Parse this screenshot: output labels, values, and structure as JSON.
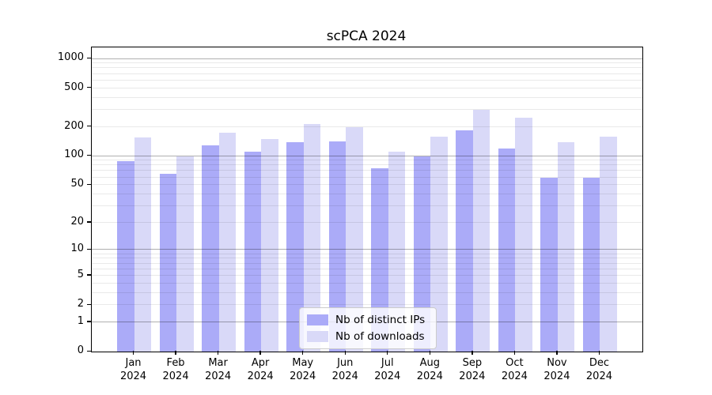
{
  "title": "scPCA 2024",
  "legend": {
    "items": [
      {
        "label": "Nb of distinct IPs",
        "color": "#ababf8"
      },
      {
        "label": "Nb of downloads",
        "color": "#d9d9f8"
      }
    ]
  },
  "chart_data": {
    "type": "bar",
    "title": "scPCA 2024",
    "categories": [
      "Jan 2024",
      "Feb 2024",
      "Mar 2024",
      "Apr 2024",
      "May 2024",
      "Jun 2024",
      "Jul 2024",
      "Aug 2024",
      "Sep 2024",
      "Oct 2024",
      "Nov 2024",
      "Dec 2024"
    ],
    "series": [
      {
        "name": "Nb of distinct IPs",
        "color": "#ababf8",
        "values": [
          88,
          66,
          128,
          111,
          138,
          142,
          74,
          99,
          185,
          120,
          60,
          60
        ]
      },
      {
        "name": "Nb of downloads",
        "color": "#d9d9f8",
        "values": [
          157,
          100,
          175,
          150,
          215,
          197,
          111,
          160,
          300,
          250,
          140,
          158
        ]
      }
    ],
    "xlabel": "",
    "ylabel": "",
    "yscale": "log1p",
    "ylim": [
      0,
      1310
    ],
    "y_tick_labels": [
      0,
      1,
      2,
      5,
      10,
      20,
      50,
      100,
      200,
      500,
      1000
    ],
    "y_major_gridlines": [
      1,
      10,
      100,
      1000
    ],
    "grid": true,
    "legend_position": "lower center"
  }
}
